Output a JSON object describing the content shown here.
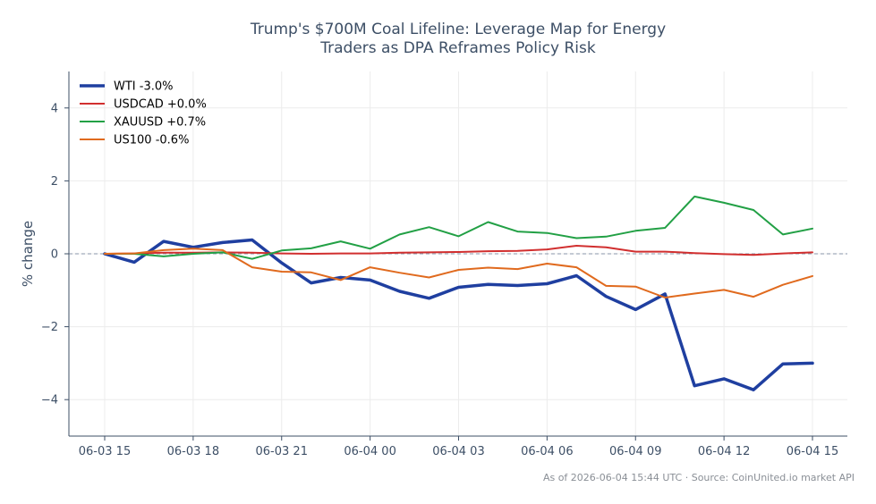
{
  "chart_data": {
    "type": "line",
    "title_lines": [
      "Trump's $700M Coal Lifeline: Leverage Map for Energy",
      "Traders as DPA Reframes Policy Risk"
    ],
    "xlabel": "",
    "ylabel": "% change",
    "ylim": [
      -5,
      5
    ],
    "yticks": [
      {
        "value": -4,
        "label": "−4"
      },
      {
        "value": -2,
        "label": "−2"
      },
      {
        "value": 0,
        "label": "0"
      },
      {
        "value": 2,
        "label": "2"
      },
      {
        "value": 4,
        "label": "4"
      }
    ],
    "x": [
      "06-03 15:00",
      "06-03 16:00",
      "06-03 17:00",
      "06-03 18:00",
      "06-03 19:00",
      "06-03 20:00",
      "06-03 21:00",
      "06-03 22:00",
      "06-03 23:00",
      "06-04 00:00",
      "06-04 01:00",
      "06-04 02:00",
      "06-04 03:00",
      "06-04 04:00",
      "06-04 05:00",
      "06-04 06:00",
      "06-04 07:00",
      "06-04 08:00",
      "06-04 09:00",
      "06-04 10:00",
      "06-04 11:00",
      "06-04 12:00",
      "06-04 13:00",
      "06-04 14:00",
      "06-04 15:00"
    ],
    "xticks": [
      {
        "index": 0,
        "label": "06-03 15"
      },
      {
        "index": 3,
        "label": "06-03 18"
      },
      {
        "index": 6,
        "label": "06-03 21"
      },
      {
        "index": 9,
        "label": "06-04 00"
      },
      {
        "index": 12,
        "label": "06-04 03"
      },
      {
        "index": 15,
        "label": "06-04 06"
      },
      {
        "index": 18,
        "label": "06-04 09"
      },
      {
        "index": 21,
        "label": "06-04 12"
      },
      {
        "index": 24,
        "label": "06-04 15"
      }
    ],
    "reference_line": {
      "y": 0,
      "style": "dashed"
    },
    "grid": true,
    "legend_position": "top-left",
    "series": [
      {
        "name": "WTI -3.0%",
        "color": "#1f3fa0",
        "width": "thick",
        "values": [
          0.0,
          -0.23,
          0.34,
          0.18,
          0.31,
          0.38,
          -0.25,
          -0.8,
          -0.65,
          -0.72,
          -1.03,
          -1.22,
          -0.92,
          -0.84,
          -0.87,
          -0.82,
          -0.6,
          -1.17,
          -1.53,
          -1.1,
          -3.62,
          -3.43,
          -3.73,
          -3.02,
          -3.0
        ]
      },
      {
        "name": "USDCAD +0.0%",
        "color": "#d12f2f",
        "width": "normal",
        "values": [
          0.0,
          0.01,
          0.03,
          0.03,
          0.04,
          0.03,
          0.01,
          0.0,
          0.01,
          0.01,
          0.03,
          0.04,
          0.05,
          0.07,
          0.08,
          0.12,
          0.22,
          0.18,
          0.06,
          0.06,
          0.02,
          -0.01,
          -0.03,
          0.01,
          0.04
        ]
      },
      {
        "name": "XAUUSD +0.7%",
        "color": "#22a045",
        "width": "normal",
        "values": [
          0.0,
          0.0,
          -0.07,
          0.0,
          0.04,
          -0.14,
          0.09,
          0.15,
          0.34,
          0.14,
          0.53,
          0.73,
          0.48,
          0.87,
          0.61,
          0.57,
          0.43,
          0.47,
          0.63,
          0.71,
          1.57,
          1.4,
          1.2,
          0.53,
          0.69
        ]
      },
      {
        "name": "US100 -0.6%",
        "color": "#e06a1e",
        "width": "normal",
        "values": [
          0.0,
          0.01,
          0.1,
          0.14,
          0.1,
          -0.37,
          -0.49,
          -0.51,
          -0.72,
          -0.37,
          -0.52,
          -0.65,
          -0.44,
          -0.38,
          -0.42,
          -0.27,
          -0.37,
          -0.88,
          -0.9,
          -1.2,
          -1.09,
          -0.99,
          -1.18,
          -0.85,
          -0.61
        ]
      }
    ]
  },
  "footer": "As of 2026-06-04 15:44 UTC · Source: CoinUnited.io market API"
}
